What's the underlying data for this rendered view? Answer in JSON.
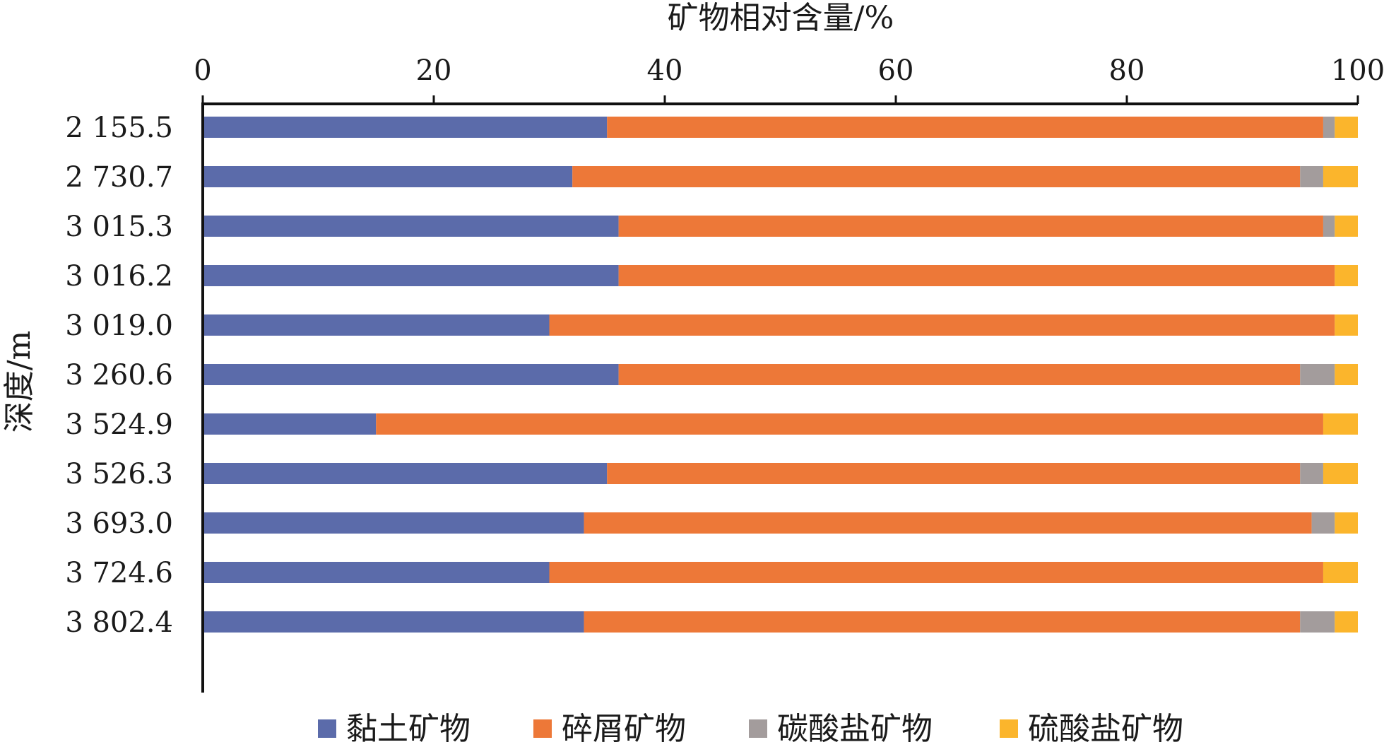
{
  "chart_data": {
    "type": "bar",
    "orientation": "horizontal",
    "stacked": true,
    "xlabel": "矿物相对含量/%",
    "ylabel": "深度/m",
    "xlim": [
      0,
      100
    ],
    "x_ticks": [
      "0",
      "20",
      "40",
      "60",
      "80",
      "100"
    ],
    "x_axis_position": "top",
    "grid": false,
    "legend_position": "bottom",
    "categories": [
      "2 155.5",
      "2 730.7",
      "3 015.3",
      "3 016.2",
      "3 019.0",
      "3 260.6",
      "3 524.9",
      "3 526.3",
      "3 693.0",
      "3 724.6",
      "3 802.4"
    ],
    "series": [
      {
        "name": "黏土矿物",
        "color": "#5B6BAA",
        "values": [
          35,
          32,
          36,
          36,
          30,
          36,
          15,
          35,
          33,
          30,
          33
        ]
      },
      {
        "name": "碎屑矿物",
        "color": "#ED7838",
        "values": [
          62,
          63,
          61,
          62,
          68,
          59,
          82,
          60,
          63,
          67,
          62
        ]
      },
      {
        "name": "碳酸盐矿物",
        "color": "#A39C9C",
        "values": [
          1,
          2,
          1,
          0,
          0,
          3,
          0,
          2,
          2,
          0,
          3
        ]
      },
      {
        "name": "硫酸盐矿物",
        "color": "#FBB52C",
        "values": [
          2,
          3,
          2,
          2,
          2,
          2,
          3,
          3,
          2,
          3,
          2
        ]
      }
    ]
  }
}
